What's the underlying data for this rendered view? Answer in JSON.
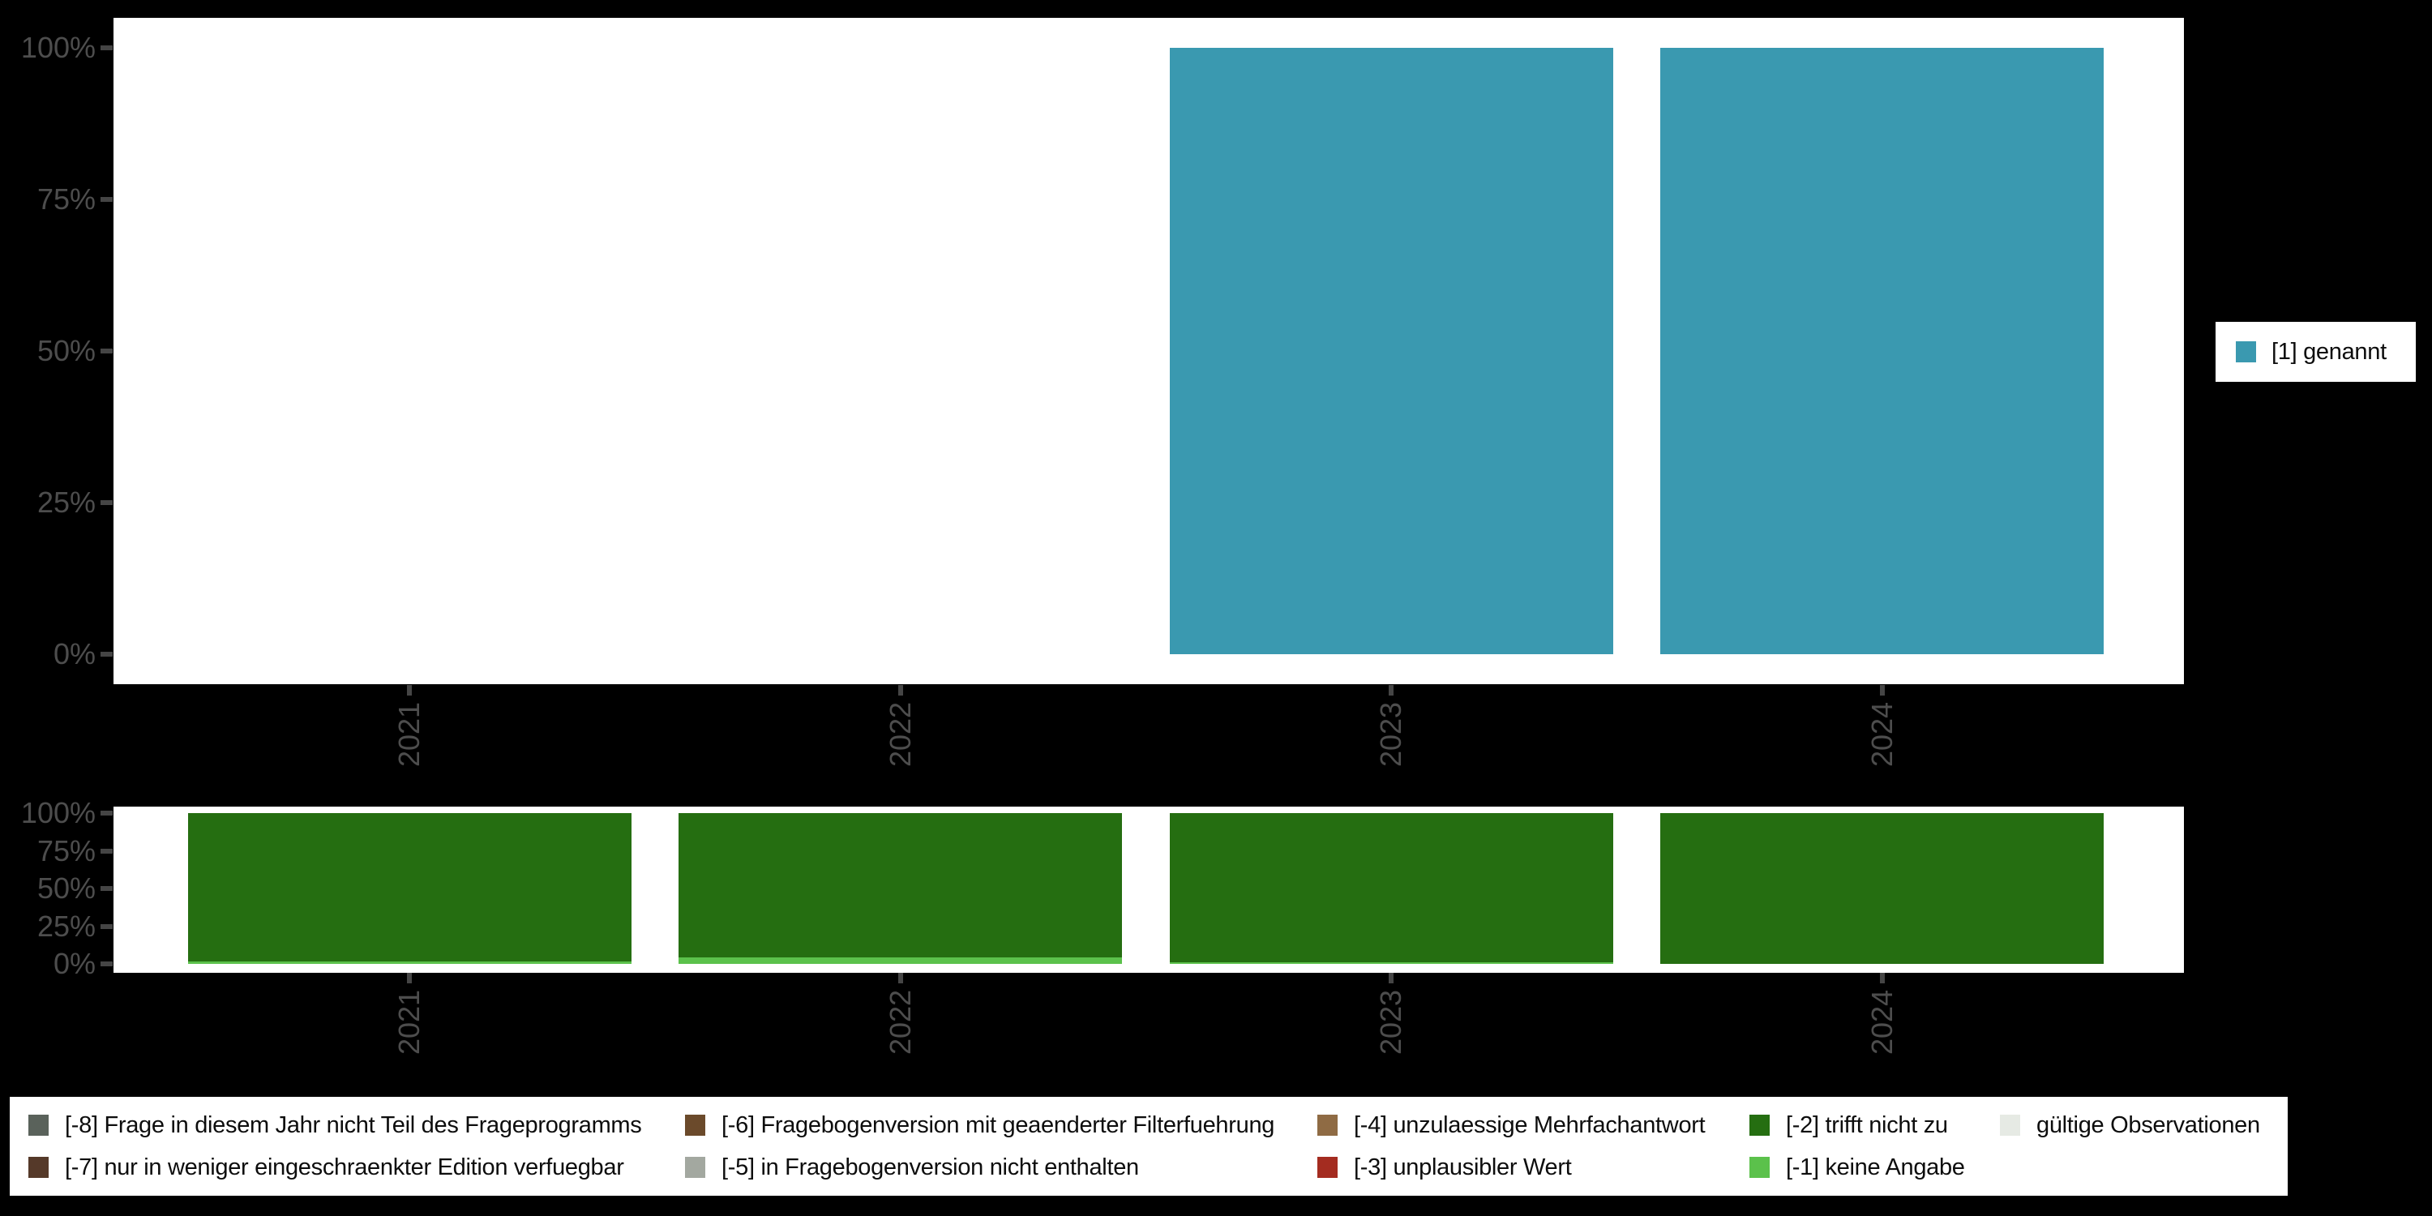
{
  "page": {
    "background_color": "#000000",
    "panel_color": "#ffffff",
    "axis_text_color": "#4d4d4d"
  },
  "chart_data": [
    {
      "type": "bar",
      "title": "",
      "xlabel": "",
      "ylabel": "",
      "categories": [
        "2021",
        "2022",
        "2023",
        "2024"
      ],
      "series": [
        {
          "name": "[1] genannt",
          "color": "#3A99B0",
          "values": [
            null,
            null,
            100,
            100
          ]
        }
      ],
      "ylim": [
        0,
        100
      ],
      "yticks": [
        "0%",
        "25%",
        "50%",
        "75%",
        "100%"
      ],
      "grid": false,
      "legend_position": "right"
    },
    {
      "type": "bar",
      "stacked": true,
      "title": "",
      "xlabel": "",
      "ylabel": "",
      "categories": [
        "2021",
        "2022",
        "2023",
        "2024"
      ],
      "series": [
        {
          "name": "[-2] trifft nicht zu",
          "color": "#256E11",
          "values": [
            98.5,
            95.5,
            99,
            100
          ]
        },
        {
          "name": "[-1] keine Angabe",
          "color": "#5BC14B",
          "values": [
            1.5,
            4.5,
            1,
            0
          ]
        }
      ],
      "ylim": [
        0,
        100
      ],
      "yticks": [
        "0%",
        "25%",
        "50%",
        "75%",
        "100%"
      ],
      "grid": false,
      "legend_position": "bottom"
    }
  ],
  "right_legend": {
    "items": [
      {
        "label": "[1] genannt",
        "color": "#3A99B0"
      }
    ]
  },
  "missing_legend": {
    "items": [
      {
        "label": "[-8] Frage in diesem Jahr nicht Teil des Frageprogramms",
        "color": "#5A625B",
        "row": 0,
        "col": 0
      },
      {
        "label": "[-7] nur in weniger eingeschraenkter Edition verfuegbar",
        "color": "#553929",
        "row": 1,
        "col": 0
      },
      {
        "label": "[-6] Fragebogenversion mit geaenderter Filterfuehrung",
        "color": "#6B4A2B",
        "row": 0,
        "col": 1
      },
      {
        "label": "[-5] in Fragebogenversion nicht enthalten",
        "color": "#A3A8A0",
        "row": 1,
        "col": 1
      },
      {
        "label": "[-4] unzulaessige Mehrfachantwort",
        "color": "#8F6B44",
        "row": 0,
        "col": 2
      },
      {
        "label": "[-3] unplausibler Wert",
        "color": "#A42C20",
        "row": 1,
        "col": 2
      },
      {
        "label": "[-2] trifft nicht zu",
        "color": "#256E11",
        "row": 0,
        "col": 3
      },
      {
        "label": "[-1] keine Angabe",
        "color": "#5BC14B",
        "row": 1,
        "col": 3
      },
      {
        "label": "gültige Observationen",
        "color": "#E6EAE4",
        "row": 0,
        "col": 4
      }
    ]
  }
}
